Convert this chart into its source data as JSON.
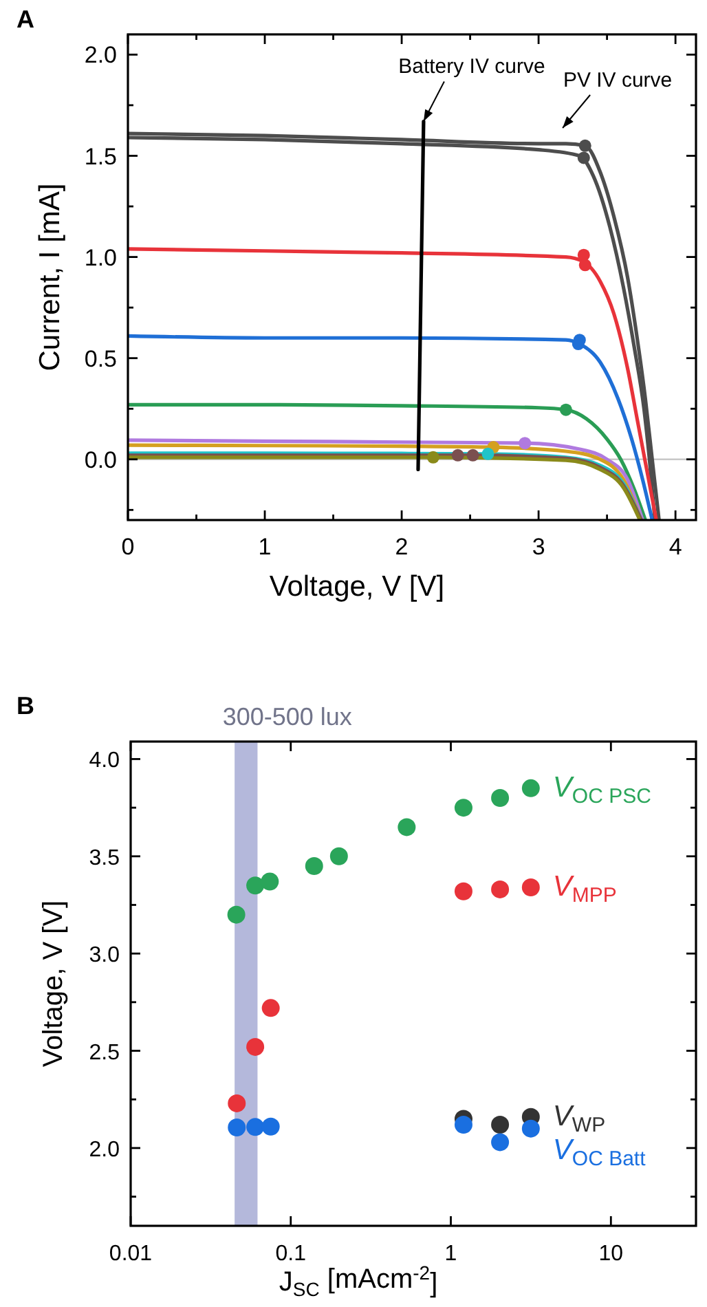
{
  "chart_data": [
    {
      "type": "line",
      "title": "A",
      "xlabel": "Voltage, V [V]",
      "ylabel": "Current, I [mA]",
      "xlim": [
        0,
        4.15
      ],
      "ylim": [
        -0.3,
        2.1
      ],
      "xticks": [
        0,
        {
          "value": 0.5,
          "label": null
        },
        1,
        {
          "value": 1.5,
          "label": null
        },
        2,
        {
          "value": 2.5,
          "label": null
        },
        3,
        {
          "value": 3.5,
          "label": null
        },
        4
      ],
      "yticks": [
        {
          "value": -0.25,
          "label": null
        },
        {
          "value": 0,
          "label": "0.0"
        },
        {
          "value": 0.25,
          "label": null
        },
        {
          "value": 0.5,
          "label": "0.5"
        },
        {
          "value": 0.75,
          "label": null
        },
        {
          "value": 1,
          "label": "1.0"
        },
        {
          "value": 1.25,
          "label": null
        },
        {
          "value": 1.5,
          "label": "1.5"
        },
        {
          "value": 1.75,
          "label": null
        },
        {
          "value": 2,
          "label": "2.0"
        }
      ],
      "grid": false,
      "ref_lines": [
        {
          "axis": "y",
          "value": 0,
          "color": "#c8c8c8"
        }
      ],
      "annotations": [
        {
          "text": "Battery IV curve",
          "x": 2.16,
          "y": 1.67
        },
        "PV IV curve"
      ],
      "series": [
        {
          "color": "#4d4d4d",
          "x": [
            0,
            1,
            2,
            3,
            3.2,
            3.34,
            3.45,
            3.55,
            3.65,
            3.72,
            3.78,
            3.83,
            3.88
          ],
          "values": [
            1.61,
            1.6,
            1.58,
            1.56,
            1.56,
            1.55,
            1.42,
            1.2,
            0.9,
            0.6,
            0.3,
            0,
            -0.3
          ]
        },
        {
          "color": "#4d4d4d",
          "x": [
            0,
            1,
            2,
            3,
            3.3,
            3.4,
            3.52,
            3.62,
            3.7,
            3.77,
            3.81,
            3.85
          ],
          "values": [
            1.59,
            1.58,
            1.56,
            1.53,
            1.5,
            1.4,
            1.15,
            0.85,
            0.55,
            0.25,
            0,
            -0.3
          ]
        },
        {
          "color": "#e8333a",
          "x": [
            0,
            1,
            2,
            3.2,
            3.32,
            3.45,
            3.55,
            3.65,
            3.72,
            3.79,
            3.86
          ],
          "values": [
            1.04,
            1.03,
            1.02,
            1.0,
            0.98,
            0.88,
            0.72,
            0.45,
            0.2,
            -0.05,
            -0.3
          ]
        },
        {
          "color": "#1f6fd6",
          "x": [
            0,
            1,
            2,
            3.2,
            3.3,
            3.45,
            3.58,
            3.68,
            3.76,
            3.83
          ],
          "values": [
            0.61,
            0.6,
            0.6,
            0.59,
            0.57,
            0.48,
            0.3,
            0.1,
            -0.1,
            -0.3
          ]
        },
        {
          "color": "#2a9d55",
          "x": [
            0,
            1,
            2,
            3,
            3.2,
            3.35,
            3.5,
            3.6,
            3.7,
            3.78
          ],
          "values": [
            0.27,
            0.27,
            0.265,
            0.255,
            0.245,
            0.2,
            0.1,
            0,
            -0.15,
            -0.3
          ]
        },
        {
          "color": "#b07adf",
          "x": [
            0,
            1,
            2,
            2.9,
            3.3,
            3.5,
            3.65,
            3.76
          ],
          "values": [
            0.095,
            0.09,
            0.085,
            0.08,
            0.05,
            0,
            -0.1,
            -0.3
          ]
        },
        {
          "color": "#d4a020",
          "x": [
            0,
            1,
            2,
            2.67,
            3.2,
            3.45,
            3.62,
            3.75
          ],
          "values": [
            0.07,
            0.068,
            0.065,
            0.06,
            0.04,
            0,
            -0.1,
            -0.3
          ]
        },
        {
          "color": "#20c4c8",
          "x": [
            0,
            1,
            2,
            2.63,
            3.2,
            3.45,
            3.62,
            3.75
          ],
          "values": [
            0.03,
            0.03,
            0.029,
            0.027,
            0.01,
            -0.03,
            -0.12,
            -0.3
          ]
        },
        {
          "color": "#7b4f4f",
          "x": [
            0,
            1,
            2,
            2.5,
            3.2,
            3.45,
            3.62,
            3.75
          ],
          "values": [
            0.02,
            0.02,
            0.02,
            0.02,
            0.005,
            -0.04,
            -0.13,
            -0.3
          ]
        },
        {
          "color": "#8a8a1a",
          "x": [
            0,
            1,
            2,
            2.23,
            3.2,
            3.45,
            3.62,
            3.74
          ],
          "values": [
            0.01,
            0.01,
            0.01,
            0.01,
            -0.005,
            -0.05,
            -0.14,
            -0.3
          ]
        },
        {
          "color": "#000000",
          "x": [
            2.12,
            2.16
          ],
          "values": [
            -0.05,
            1.67
          ]
        },
        {
          "type": "scatter",
          "marker": "circle",
          "colors": [
            "#4d4d4d",
            "#4d4d4d",
            "#e8333a",
            "#e8333a",
            "#1f6fd6",
            "#1f6fd6",
            "#2a9d55",
            "#b07adf",
            "#d4a020",
            "#20c4c8",
            "#7b4f4f",
            "#7b4f4f",
            "#8a8a1a"
          ],
          "x": [
            3.34,
            3.33,
            3.33,
            3.34,
            3.3,
            3.29,
            3.2,
            2.9,
            2.67,
            2.63,
            2.41,
            2.52,
            2.23
          ],
          "values": [
            1.55,
            1.49,
            1.01,
            0.96,
            0.59,
            0.57,
            0.245,
            0.08,
            0.06,
            0.027,
            0.02,
            0.02,
            0.01
          ]
        }
      ]
    },
    {
      "type": "scatter",
      "title": "B",
      "xlabel": "J$_{SC}$ [mAcm$^{-2}$]",
      "ylabel": "Voltage, V [V]",
      "xlim": [
        0.01,
        34
      ],
      "ylim": [
        1.6,
        4.09
      ],
      "log": "x",
      "xticks": [
        0.01,
        0.1,
        1,
        10
      ],
      "yticks": [
        {
          "value": 1.75,
          "label": null
        },
        {
          "value": 2,
          "label": "2.0"
        },
        {
          "value": 2.25,
          "label": null
        },
        {
          "value": 2.5,
          "label": "2.5"
        },
        {
          "value": 2.75,
          "label": null
        },
        {
          "value": 3,
          "label": "3.0"
        },
        {
          "value": 3.25,
          "label": null
        },
        {
          "value": 3.5,
          "label": "3.5"
        },
        {
          "value": 3.75,
          "label": null
        },
        {
          "value": 4,
          "label": "4.0"
        }
      ],
      "grid": false,
      "marker": "circle",
      "bands": [
        {
          "axis": "x",
          "from": 0.0446,
          "to": 0.062,
          "label": "300-500 lux",
          "color": "#b4b8db"
        }
      ],
      "series": [
        {
          "name": "V$_{OC PSC}$",
          "color": "#2aa55a",
          "x": [
            0.0457,
            0.06,
            0.074,
            0.14,
            0.2,
            0.53,
            1.2,
            2.03,
            3.16
          ],
          "values": [
            3.2,
            3.35,
            3.37,
            3.45,
            3.5,
            3.65,
            3.75,
            3.8,
            3.85
          ]
        },
        {
          "name": "V$_{MPP}$",
          "color": "#e8333a",
          "x": [
            0.046,
            0.06,
            0.075,
            1.2,
            2.03,
            3.16
          ],
          "values": [
            2.23,
            2.52,
            2.72,
            3.32,
            3.33,
            3.34
          ]
        },
        {
          "name": "V$_{WP}$",
          "color": "#333333",
          "x": [
            1.2,
            2.03,
            3.16
          ],
          "values": [
            2.15,
            2.12,
            2.16
          ]
        },
        {
          "name": "V$_{OC Batt}$",
          "color": "#1a6fe0",
          "x": [
            0.046,
            0.06,
            0.075,
            1.2,
            2.03,
            3.16
          ],
          "values": [
            2.106,
            2.108,
            2.11,
            2.12,
            2.03,
            2.1
          ]
        }
      ]
    }
  ]
}
